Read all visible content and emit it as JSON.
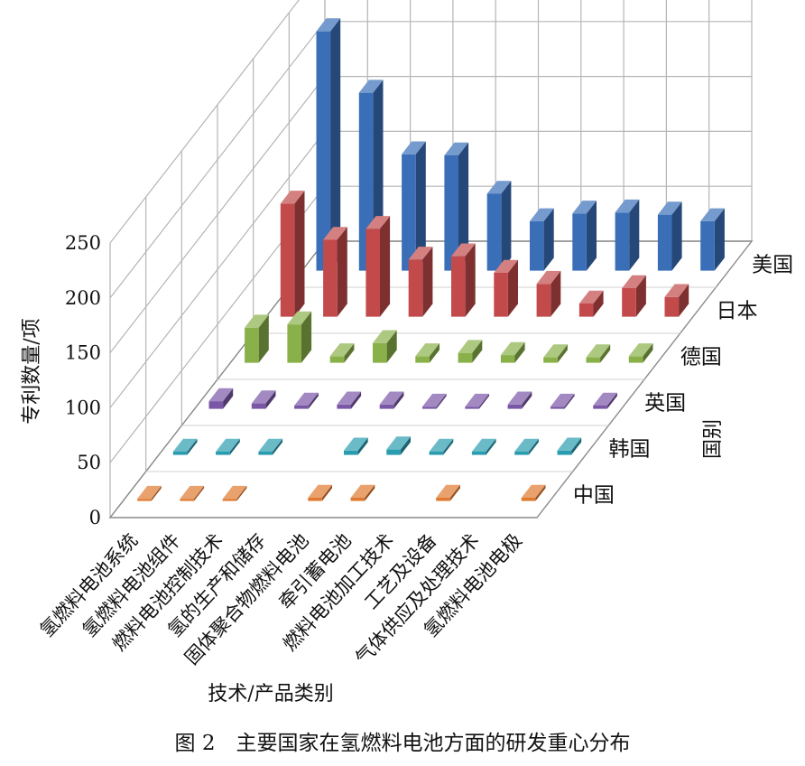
{
  "figure_caption": "图 2　主要国家在氢燃料电池方面的研发重心分布",
  "chart_data": {
    "type": "bar",
    "subtype": "3d-column",
    "ylabel": "专利数量/项",
    "xlabel": "技术/产品类别",
    "zlabel": "国别",
    "ylim": [
      0,
      250
    ],
    "yticks": [
      "0",
      "50",
      "100",
      "150",
      "200",
      "250"
    ],
    "grid": true,
    "categories": [
      "氢燃料电池系统",
      "氢燃料电池组件",
      "燃料电池控制技术",
      "氢的生产和储存",
      "固体聚合物燃料电池",
      "牵引蓄电池",
      "燃料电池加工技术",
      "工艺及设备",
      "气体供应及处理技术",
      "氢燃料电池电极"
    ],
    "series": [
      {
        "name": "中国",
        "color": "#e07a30",
        "values": [
          2,
          2,
          2,
          0,
          3,
          3,
          0,
          3,
          0,
          3
        ]
      },
      {
        "name": "韩国",
        "color": "#2a9cb0",
        "values": [
          3,
          3,
          3,
          0,
          4,
          5,
          3,
          3,
          3,
          4
        ]
      },
      {
        "name": "英国",
        "color": "#7a56a6",
        "values": [
          7,
          5,
          3,
          4,
          4,
          2,
          2,
          4,
          2,
          3
        ]
      },
      {
        "name": "德国",
        "color": "#8ab04a",
        "values": [
          32,
          35,
          6,
          18,
          6,
          9,
          7,
          5,
          5,
          6
        ]
      },
      {
        "name": "日本",
        "color": "#c24a4a",
        "values": [
          103,
          70,
          80,
          52,
          55,
          40,
          30,
          12,
          26,
          18
        ]
      },
      {
        "name": "美国",
        "color": "#3a6fb8",
        "values": [
          218,
          162,
          106,
          105,
          70,
          45,
          52,
          53,
          51,
          45
        ]
      }
    ]
  }
}
